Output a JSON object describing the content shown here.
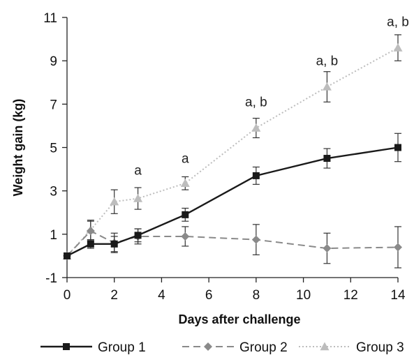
{
  "chart_data": {
    "type": "line",
    "xlabel": "Days after challenge",
    "ylabel": "Weight gain (kg)",
    "xlim": [
      0,
      14
    ],
    "ylim": [
      -1,
      11
    ],
    "x_ticks": [
      0,
      2,
      4,
      6,
      8,
      10,
      12,
      14
    ],
    "y_ticks": [
      -1,
      1,
      3,
      5,
      7,
      9,
      11
    ],
    "grid": false,
    "legend_position": "bottom",
    "series": [
      {
        "name": "Group 1",
        "color": "#1a1a1a",
        "line_style": "solid",
        "marker": "square",
        "x": [
          0,
          1,
          2,
          3,
          5,
          8,
          11,
          14
        ],
        "y": [
          0.0,
          0.55,
          0.55,
          0.95,
          1.9,
          3.7,
          4.5,
          5.0
        ],
        "error": [
          0.0,
          0.2,
          0.35,
          0.3,
          0.3,
          0.4,
          0.45,
          0.65
        ]
      },
      {
        "name": "Group 2",
        "color": "#8a8a8a",
        "line_style": "dashed",
        "marker": "diamond",
        "x": [
          0,
          1,
          2,
          3,
          5,
          8,
          11,
          14
        ],
        "y": [
          0.0,
          1.15,
          0.6,
          0.9,
          0.9,
          0.75,
          0.35,
          0.4
        ],
        "error": [
          0.0,
          0.45,
          0.45,
          0.35,
          0.45,
          0.7,
          0.7,
          0.95
        ]
      },
      {
        "name": "Group 3",
        "color": "#bdbdbd",
        "line_style": "dotted",
        "marker": "triangle",
        "x": [
          0,
          1,
          2,
          3,
          5,
          8,
          11,
          14
        ],
        "y": [
          0.0,
          1.2,
          2.5,
          2.65,
          3.35,
          5.9,
          7.8,
          9.6
        ],
        "error": [
          0.0,
          0.45,
          0.55,
          0.5,
          0.3,
          0.45,
          0.7,
          0.6
        ]
      }
    ],
    "annotations": [
      {
        "x": 3,
        "y": 3.75,
        "text": "a"
      },
      {
        "x": 5,
        "y": 4.3,
        "text": "a"
      },
      {
        "x": 8,
        "y": 6.9,
        "text": "a, b"
      },
      {
        "x": 11,
        "y": 8.8,
        "text": "a, b"
      },
      {
        "x": 14,
        "y": 10.6,
        "text": "a, b"
      }
    ]
  }
}
